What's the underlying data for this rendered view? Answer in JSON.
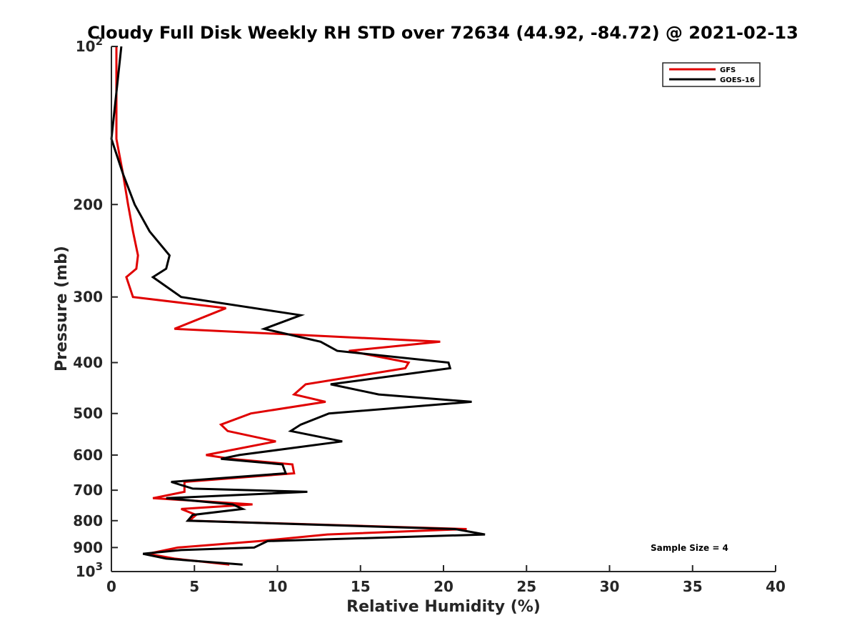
{
  "chart_data": {
    "type": "line",
    "title": "Cloudy Full Disk Weekly RH STD over 72634 (44.92, -84.72) @ 2021-02-13",
    "xlabel": "Relative Humidity (%)",
    "ylabel": "Pressure (mb)",
    "xlim": [
      0,
      40
    ],
    "ylim": [
      100,
      1000
    ],
    "y_scale": "log",
    "y_reversed": true,
    "x_ticks": [
      "0",
      "5",
      "10",
      "15",
      "20",
      "25",
      "30",
      "35",
      "40"
    ],
    "y_ticks": [
      {
        "value": 100,
        "base": "10",
        "exp": "2"
      },
      {
        "value": 200,
        "label": "200"
      },
      {
        "value": 300,
        "label": "300"
      },
      {
        "value": 400,
        "label": "400"
      },
      {
        "value": 500,
        "label": "500"
      },
      {
        "value": 600,
        "label": "600"
      },
      {
        "value": 700,
        "label": "700"
      },
      {
        "value": 800,
        "label": "800"
      },
      {
        "value": 900,
        "label": "900"
      },
      {
        "value": 1000,
        "base": "10",
        "exp": "3"
      }
    ],
    "legend_position": "top-right",
    "annotation": "Sample Size = 4",
    "series": [
      {
        "name": "GFS",
        "color": "#e00000",
        "points": [
          [
            0.3,
            100
          ],
          [
            0.3,
            150
          ],
          [
            0.7,
            175
          ],
          [
            1.0,
            200
          ],
          [
            1.3,
            225
          ],
          [
            1.6,
            250
          ],
          [
            1.5,
            265
          ],
          [
            0.9,
            275
          ],
          [
            1.3,
            300
          ],
          [
            6.9,
            315
          ],
          [
            3.8,
            345
          ],
          [
            19.8,
            365
          ],
          [
            14.3,
            380
          ],
          [
            17.9,
            400
          ],
          [
            17.7,
            410
          ],
          [
            11.7,
            440
          ],
          [
            11.0,
            460
          ],
          [
            12.9,
            475
          ],
          [
            8.4,
            500
          ],
          [
            6.6,
            525
          ],
          [
            7.0,
            540
          ],
          [
            9.9,
            565
          ],
          [
            5.7,
            600
          ],
          [
            7.2,
            610
          ],
          [
            10.9,
            625
          ],
          [
            11.0,
            650
          ],
          [
            4.4,
            675
          ],
          [
            4.4,
            705
          ],
          [
            2.5,
            725
          ],
          [
            8.5,
            745
          ],
          [
            4.2,
            760
          ],
          [
            5.1,
            780
          ],
          [
            4.7,
            800
          ],
          [
            21.4,
            830
          ],
          [
            13.0,
            850
          ],
          [
            8.9,
            875
          ],
          [
            4.0,
            900
          ],
          [
            2.2,
            925
          ],
          [
            3.8,
            945
          ],
          [
            7.1,
            970
          ]
        ]
      },
      {
        "name": "GOES-16",
        "color": "#000000",
        "points": [
          [
            0.6,
            100
          ],
          [
            0.0,
            150
          ],
          [
            0.7,
            175
          ],
          [
            1.4,
            200
          ],
          [
            2.3,
            225
          ],
          [
            3.5,
            250
          ],
          [
            3.3,
            265
          ],
          [
            2.5,
            275
          ],
          [
            4.2,
            300
          ],
          [
            11.4,
            325
          ],
          [
            9.2,
            345
          ],
          [
            12.6,
            365
          ],
          [
            13.6,
            380
          ],
          [
            20.3,
            400
          ],
          [
            20.4,
            410
          ],
          [
            13.2,
            440
          ],
          [
            16.1,
            460
          ],
          [
            21.7,
            475
          ],
          [
            13.1,
            500
          ],
          [
            11.4,
            525
          ],
          [
            10.8,
            540
          ],
          [
            13.9,
            565
          ],
          [
            7.7,
            600
          ],
          [
            6.6,
            610
          ],
          [
            10.3,
            625
          ],
          [
            10.5,
            650
          ],
          [
            3.6,
            675
          ],
          [
            4.9,
            695
          ],
          [
            11.8,
            705
          ],
          [
            3.3,
            725
          ],
          [
            7.3,
            745
          ],
          [
            7.9,
            760
          ],
          [
            4.9,
            780
          ],
          [
            4.6,
            800
          ],
          [
            20.7,
            830
          ],
          [
            22.5,
            850
          ],
          [
            9.4,
            875
          ],
          [
            8.6,
            900
          ],
          [
            4.2,
            910
          ],
          [
            1.9,
            925
          ],
          [
            3.3,
            945
          ],
          [
            7.9,
            970
          ]
        ]
      }
    ]
  }
}
